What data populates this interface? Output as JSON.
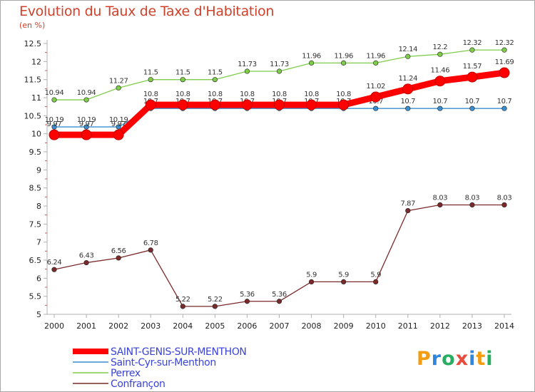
{
  "title": "Evolution du Taux de Taxe d'Habitation",
  "unit": "(en %)",
  "logo": {
    "text": "Proxiti",
    "colors": [
      "#f39c12",
      "#2e86de",
      "#27ae60",
      "#e74c3c",
      "#2e86de",
      "#f39c12",
      "#27ae60"
    ]
  },
  "chart_data": {
    "type": "line",
    "categories": [
      "2000",
      "2001",
      "2002",
      "2003",
      "2004",
      "2005",
      "2006",
      "2007",
      "2008",
      "2009",
      "2010",
      "2011",
      "2012",
      "2013",
      "2014"
    ],
    "ylim": [
      5,
      12.5
    ],
    "yticks": [
      "5",
      "5.5",
      "6",
      "6.5",
      "7",
      "7.5",
      "8",
      "8.5",
      "9",
      "9.5",
      "10",
      "10.5",
      "11",
      "11.5",
      "12",
      "12.5"
    ],
    "grid": false,
    "legend_position": "bottom-left",
    "series": [
      {
        "name": "SAINT-GENIS-SUR-MENTHON",
        "color": "#ff0000",
        "values": [
          9.97,
          9.97,
          9.97,
          10.8,
          10.8,
          10.8,
          10.8,
          10.8,
          10.8,
          10.8,
          11.02,
          11.24,
          11.46,
          11.57,
          11.69
        ],
        "labels": [
          "9.97",
          "9.97",
          "9.97",
          "10.8",
          "10.8",
          "10.8",
          "10.8",
          "10.8",
          "10.8",
          "10.8",
          "11.02",
          "11.24",
          "11.46",
          "11.57",
          "11.69"
        ]
      },
      {
        "name": "Saint-Cyr-sur-Menthon",
        "color": "#3a8ecf",
        "values": [
          10.19,
          10.19,
          10.19,
          10.7,
          10.7,
          10.7,
          10.7,
          10.7,
          10.7,
          10.7,
          10.7,
          10.7,
          10.7,
          10.7,
          10.7
        ],
        "labels": [
          "10.19",
          "10.19",
          "10.19",
          "10.7",
          "10.7",
          "10.7",
          "10.7",
          "10.7",
          "10.7",
          "10.7",
          "10.7",
          "10.7",
          "10.7",
          "10.7",
          "10.7"
        ]
      },
      {
        "name": "Perrex",
        "color": "#7fcc4a",
        "values": [
          10.94,
          10.94,
          11.27,
          11.5,
          11.5,
          11.5,
          11.73,
          11.73,
          11.96,
          11.96,
          11.96,
          12.14,
          12.2,
          12.32,
          12.32
        ],
        "labels": [
          "10.94",
          "10.94",
          "11.27",
          "11.5",
          "11.5",
          "11.5",
          "11.73",
          "11.73",
          "11.96",
          "11.96",
          "11.96",
          "12.14",
          "12.2",
          "12.32",
          "12.32"
        ]
      },
      {
        "name": "Confrançon",
        "color": "#7a2a2a",
        "values": [
          6.24,
          6.43,
          6.56,
          6.78,
          5.22,
          5.22,
          5.36,
          5.36,
          5.9,
          5.9,
          5.9,
          7.87,
          8.03,
          8.03,
          8.03
        ],
        "labels": [
          "6.24",
          "6.43",
          "6.56",
          "6.78",
          "5.22",
          "5.22",
          "5.36",
          "5.36",
          "5.9",
          "5.9",
          "5.9",
          "7.87",
          "8.03",
          "8.03",
          "8.03"
        ]
      }
    ]
  }
}
